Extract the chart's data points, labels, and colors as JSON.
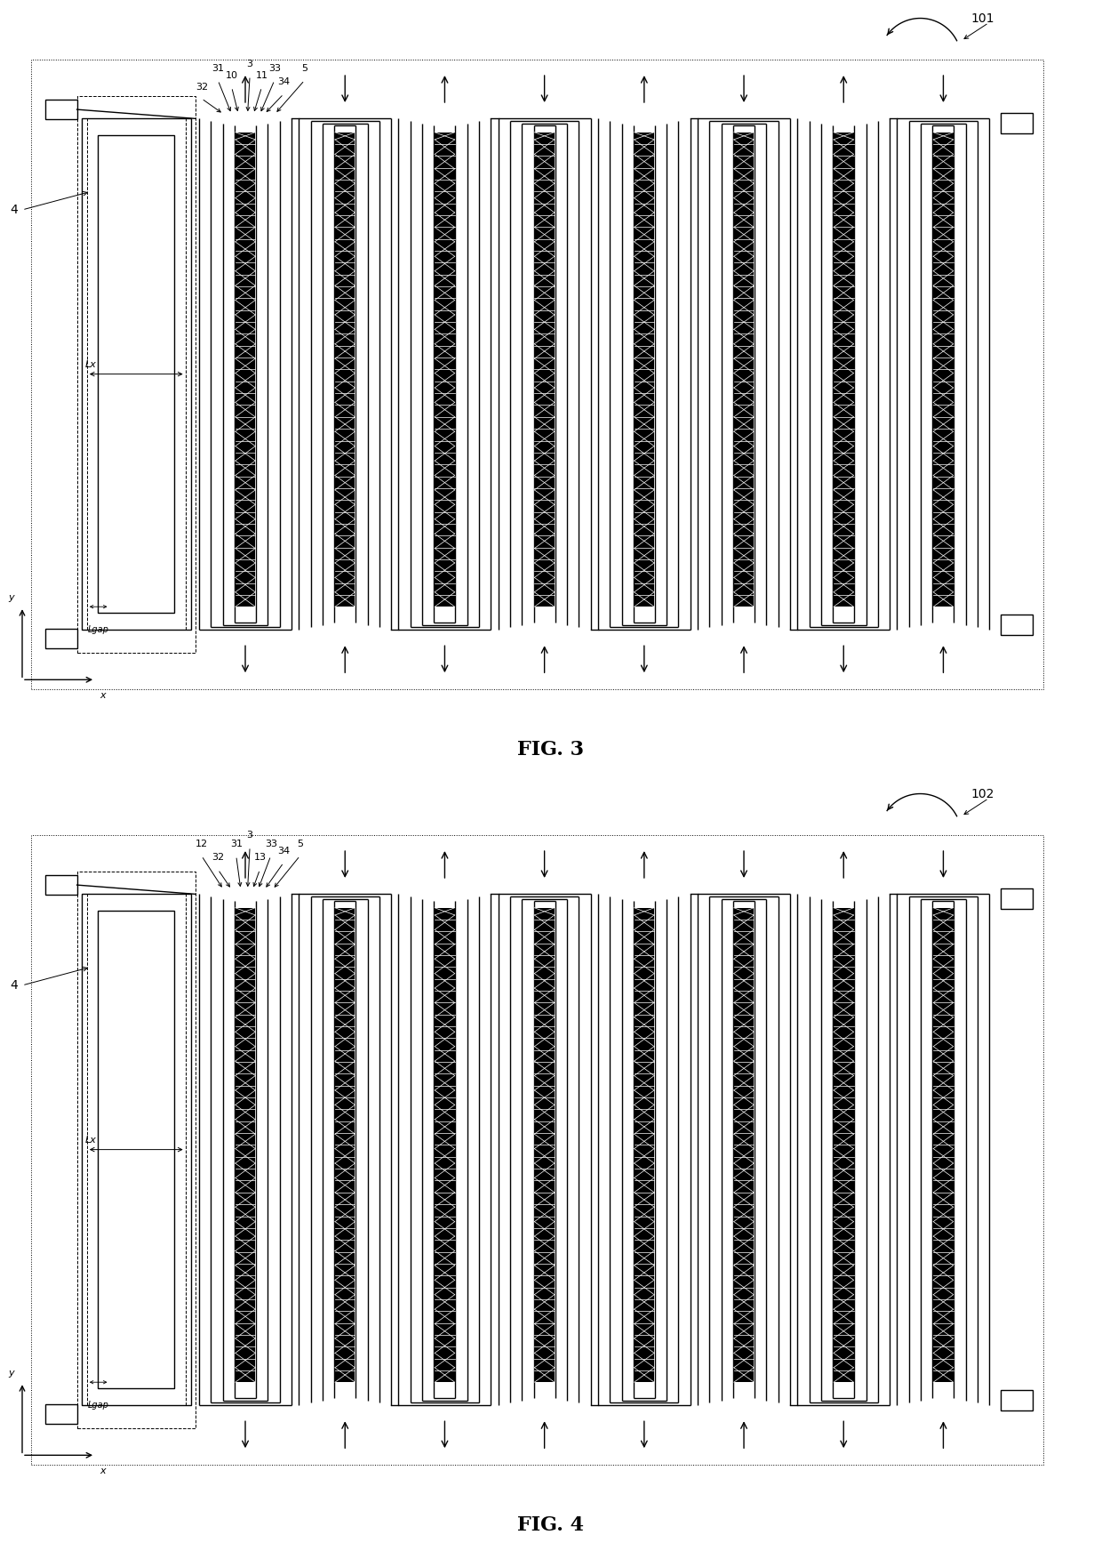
{
  "fig3_label": "FIG. 3",
  "fig4_label": "FIG. 4",
  "fig3_ref": "101",
  "fig4_ref": "102",
  "background_color": "#ffffff",
  "line_color": "#000000",
  "title_fontsize": 16,
  "label_fontsize": 10,
  "small_fontsize": 8,
  "fig3_top_labels": [
    [
      "31",
      -0.3,
      1.18
    ],
    [
      "32",
      -0.48,
      1.1
    ],
    [
      "10",
      -0.15,
      1.15
    ],
    [
      "3",
      0.05,
      1.2
    ],
    [
      "11",
      0.18,
      1.15
    ],
    [
      "33",
      0.32,
      1.18
    ],
    [
      "34",
      0.42,
      1.12
    ],
    [
      "5",
      0.65,
      1.18
    ]
  ],
  "fig4_top_labels": [
    [
      "12",
      -0.48,
      1.18
    ],
    [
      "32",
      -0.3,
      1.12
    ],
    [
      "31",
      -0.1,
      1.18
    ],
    [
      "3",
      0.05,
      1.22
    ],
    [
      "33",
      0.28,
      1.18
    ],
    [
      "13",
      0.16,
      1.12
    ],
    [
      "34",
      0.42,
      1.15
    ],
    [
      "5",
      0.6,
      1.18
    ]
  ]
}
